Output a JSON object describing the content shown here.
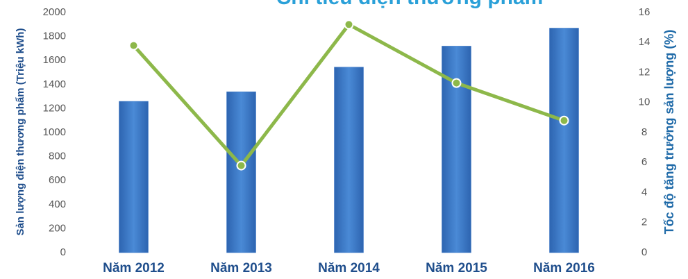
{
  "chart_data": {
    "type": "bar_line",
    "title": "Chỉ tiêu điện thương phẩm",
    "y_label": "Sản lượng điện thương phẩm (Triệu kWh)",
    "y2_label": "Tốc độ tăng trưởng sản lượng (%)",
    "categories": [
      "Năm 2012",
      "Năm 2013",
      "Năm 2014",
      "Năm 2015",
      "Năm 2016"
    ],
    "series": [
      {
        "type": "bar",
        "color": "#3a78c8",
        "values": [
          1260,
          1340,
          1545,
          1720,
          1870
        ]
      },
      {
        "type": "line",
        "color": "#8db84a",
        "axis": "y2",
        "values": [
          13.8,
          5.8,
          15.2,
          11.3,
          8.8
        ]
      }
    ],
    "ylim": [
      0,
      2000
    ],
    "yticks": [
      0,
      200,
      400,
      600,
      800,
      1000,
      1200,
      1400,
      1600,
      1800,
      2000
    ],
    "y2lim": [
      0,
      16
    ],
    "y2ticks": [
      0,
      2,
      4,
      6,
      8,
      10,
      12,
      14,
      16
    ]
  }
}
